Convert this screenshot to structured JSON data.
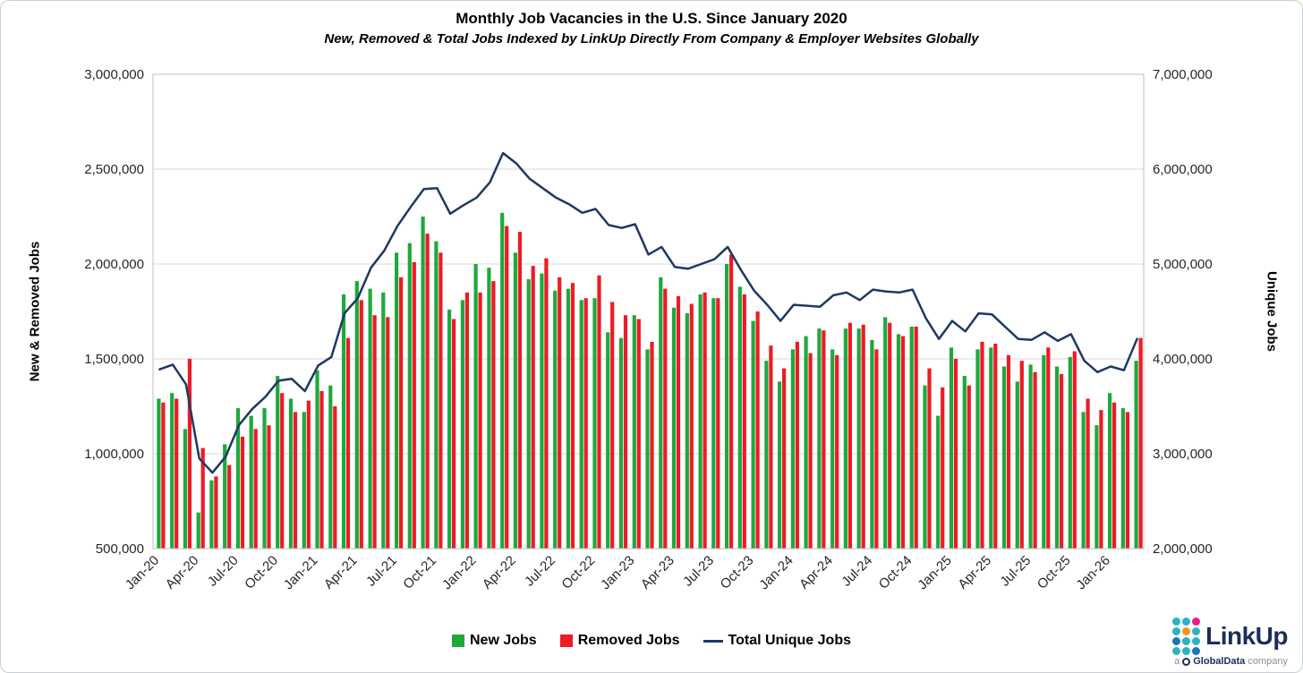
{
  "title": "Monthly Job Vacancies in the U.S. Since January 2020",
  "subtitle": "New, Removed & Total Jobs Indexed by LinkUp Directly From Company & Employer Websites Globally",
  "y_left": {
    "label": "New & Removed Jobs",
    "tick_labels": [
      "500,000",
      "1,000,000",
      "1,500,000",
      "2,000,000",
      "2,500,000",
      "3,000,000"
    ]
  },
  "y_right": {
    "label": "Unique Jobs",
    "tick_labels": [
      "2,000,000",
      "3,000,000",
      "4,000,000",
      "5,000,000",
      "6,000,000",
      "7,000,000"
    ]
  },
  "legend": {
    "items": [
      {
        "label": "New Jobs"
      },
      {
        "label": "Removed Jobs"
      },
      {
        "label": "Total Unique Jobs"
      }
    ]
  },
  "logo": {
    "name": "LinkUp",
    "tagline_prefix": "a",
    "tagline_brand": "GlobalData",
    "tagline_suffix": "company",
    "dot_colors": [
      "#2bb3c0",
      "#2bb3c0",
      "#e91e8c",
      "#2bb3c0",
      "#f7941d",
      "#2bb3c0",
      "#1b75bb",
      "#2bb3c0",
      "#2bb3c0",
      "#2bb3c0",
      "#2bb3c0",
      "#1b75bb"
    ]
  },
  "chart_data": {
    "type": "bar",
    "subtype": "grouped-bars-with-line-combo",
    "title": "Monthly Job Vacancies in the U.S. Since January 2020",
    "xlabel": "",
    "ylabel": "New & Removed Jobs",
    "ylabel_right": "Unique Jobs",
    "grid": true,
    "legend_position": "bottom",
    "left_axis": {
      "min": 500000,
      "max": 3000000,
      "step": 500000
    },
    "right_axis": {
      "min": 2000000,
      "max": 7000000,
      "step": 1000000
    },
    "x_tick_labels": [
      "Jan-20",
      "Apr-20",
      "Jul-20",
      "Oct-20",
      "Jan-21",
      "Apr-21",
      "Jul-21",
      "Oct-21",
      "Jan-22",
      "Apr-22",
      "Jul-22",
      "Oct-22",
      "Jan-23",
      "Apr-23",
      "Jul-23",
      "Oct-23",
      "Jan-24",
      "Apr-24",
      "Jul-24",
      "Oct-24",
      "Jan-25",
      "Apr-25",
      "Jul-25",
      "Oct-25",
      "Jan-26"
    ],
    "categories": [
      "Jan-20",
      "Feb-20",
      "Mar-20",
      "Apr-20",
      "May-20",
      "Jun-20",
      "Jul-20",
      "Aug-20",
      "Sep-20",
      "Oct-20",
      "Nov-20",
      "Dec-20",
      "Jan-21",
      "Feb-21",
      "Mar-21",
      "Apr-21",
      "May-21",
      "Jun-21",
      "Jul-21",
      "Aug-21",
      "Sep-21",
      "Oct-21",
      "Nov-21",
      "Dec-21",
      "Jan-22",
      "Feb-22",
      "Mar-22",
      "Apr-22",
      "May-22",
      "Jun-22",
      "Jul-22",
      "Aug-22",
      "Sep-22",
      "Oct-22",
      "Nov-22",
      "Dec-22",
      "Jan-23",
      "Feb-23",
      "Mar-23",
      "Apr-23",
      "May-23",
      "Jun-23",
      "Jul-23",
      "Aug-23",
      "Sep-23",
      "Oct-23",
      "Nov-23",
      "Dec-23",
      "Jan-24",
      "Feb-24",
      "Mar-24",
      "Apr-24",
      "May-24",
      "Jun-24",
      "Jul-24",
      "Aug-24",
      "Sep-24",
      "Oct-24",
      "Nov-24",
      "Dec-24",
      "Jan-25",
      "Feb-25",
      "Mar-25",
      "Apr-25",
      "May-25",
      "Jun-25",
      "Jul-25",
      "Aug-25",
      "Sep-25",
      "Oct-25",
      "Nov-25",
      "Dec-25",
      "Jan-26",
      "Feb-26",
      "Mar-26"
    ],
    "series": [
      {
        "name": "New Jobs",
        "type": "bar",
        "axis": "left",
        "color": "#1fa83c",
        "values": [
          1290000,
          1320000,
          1130000,
          690000,
          860000,
          1050000,
          1240000,
          1200000,
          1240000,
          1410000,
          1290000,
          1220000,
          1440000,
          1360000,
          1840000,
          1910000,
          1870000,
          1850000,
          2060000,
          2110000,
          2250000,
          2120000,
          1760000,
          1810000,
          2000000,
          1980000,
          2270000,
          2060000,
          1920000,
          1950000,
          1860000,
          1870000,
          1810000,
          1820000,
          1640000,
          1610000,
          1730000,
          1550000,
          1930000,
          1770000,
          1740000,
          1840000,
          1820000,
          2000000,
          1880000,
          1700000,
          1490000,
          1380000,
          1550000,
          1620000,
          1660000,
          1550000,
          1660000,
          1660000,
          1600000,
          1720000,
          1630000,
          1670000,
          1360000,
          1200000,
          1560000,
          1410000,
          1550000,
          1560000,
          1460000,
          1380000,
          1470000,
          1520000,
          1460000,
          1510000,
          1220000,
          1150000,
          1320000,
          1240000,
          1490000
        ]
      },
      {
        "name": "Removed Jobs",
        "type": "bar",
        "axis": "left",
        "color": "#ec1c24",
        "values": [
          1270000,
          1290000,
          1500000,
          1030000,
          880000,
          940000,
          1090000,
          1130000,
          1150000,
          1320000,
          1220000,
          1280000,
          1330000,
          1250000,
          1610000,
          1810000,
          1730000,
          1720000,
          1930000,
          2010000,
          2160000,
          2060000,
          1710000,
          1850000,
          1850000,
          1910000,
          2200000,
          2170000,
          1990000,
          2030000,
          1930000,
          1900000,
          1820000,
          1940000,
          1800000,
          1730000,
          1710000,
          1590000,
          1870000,
          1830000,
          1790000,
          1850000,
          1820000,
          2050000,
          1840000,
          1750000,
          1570000,
          1450000,
          1590000,
          1530000,
          1650000,
          1520000,
          1690000,
          1680000,
          1550000,
          1690000,
          1620000,
          1670000,
          1450000,
          1350000,
          1500000,
          1360000,
          1590000,
          1580000,
          1520000,
          1490000,
          1430000,
          1560000,
          1420000,
          1540000,
          1290000,
          1230000,
          1270000,
          1220000,
          1610000
        ]
      },
      {
        "name": "Total Unique Jobs",
        "type": "line",
        "axis": "right",
        "color": "#1f3864",
        "values": [
          3890000,
          3940000,
          3730000,
          2950000,
          2800000,
          2970000,
          3300000,
          3470000,
          3600000,
          3770000,
          3790000,
          3660000,
          3930000,
          4020000,
          4480000,
          4640000,
          4960000,
          5140000,
          5400000,
          5600000,
          5790000,
          5800000,
          5530000,
          5620000,
          5700000,
          5860000,
          6170000,
          6060000,
          5900000,
          5800000,
          5700000,
          5630000,
          5540000,
          5580000,
          5410000,
          5380000,
          5420000,
          5100000,
          5180000,
          4970000,
          4950000,
          5000000,
          5050000,
          5180000,
          4940000,
          4720000,
          4570000,
          4400000,
          4570000,
          4560000,
          4550000,
          4670000,
          4700000,
          4620000,
          4730000,
          4710000,
          4700000,
          4730000,
          4430000,
          4210000,
          4400000,
          4290000,
          4480000,
          4470000,
          4340000,
          4210000,
          4200000,
          4280000,
          4190000,
          4260000,
          3980000,
          3860000,
          3920000,
          3880000,
          4210000
        ]
      }
    ],
    "colors": {
      "grid": "#d9d9d9",
      "plot_border": "#bfbfbf",
      "tick_text": "#262626"
    }
  }
}
